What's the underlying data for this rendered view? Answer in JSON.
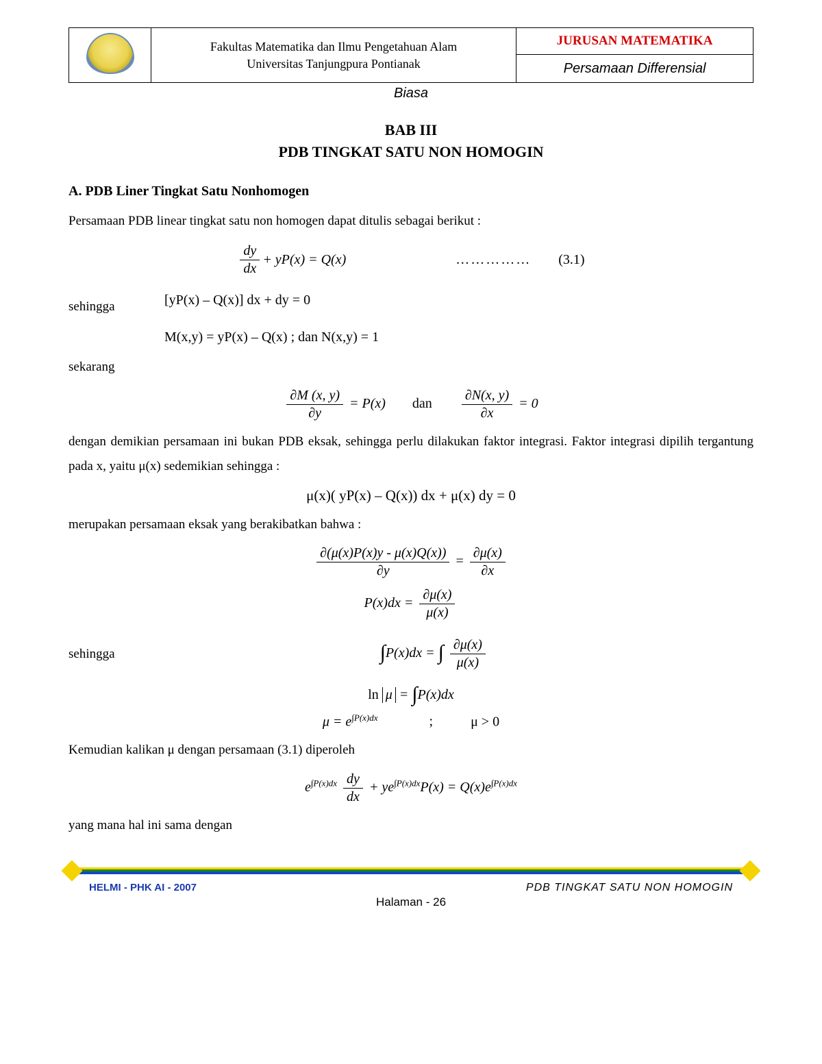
{
  "colors": {
    "text": "#000000",
    "accent_red": "#d40000",
    "footer_blue": "#1a3ab0",
    "bar_yellow": "#f4d300",
    "bar_green": "#1a8a1a",
    "bar_blue": "#1548c0",
    "logo_outer": "#6d8db8",
    "logo_inner": "#e9d24e"
  },
  "header": {
    "faculty_line1": "Fakultas Matematika dan Ilmu Pengetahuan Alam",
    "faculty_line2": "Universitas Tanjungpura Pontianak",
    "dept": "JURUSAN MATEMATIKA",
    "course_line1": "Persamaan Differensial",
    "course_line2": "Biasa"
  },
  "chapter": {
    "line1": "BAB III",
    "line2": "PDB  TINGKAT SATU  NON HOMOGIN"
  },
  "section": {
    "heading": "A.  PDB Liner Tingkat Satu Nonhomogen",
    "intro": "Persamaan PDB linear tingkat satu non homogen dapat ditulis sebagai berikut :"
  },
  "eq": {
    "e31_lhs1_num": "dy",
    "e31_lhs1_den": "dx",
    "e31_mid": " + yP(x) = Q(x)",
    "e31_dots": "……………",
    "e31_num": "(3.1)",
    "line2": "[yP(x) – Q(x)] dx + dy = 0",
    "sehingga": "sehingga",
    "line3": "M(x,y) = yP(x) – Q(x) ; dan N(x,y) = 1",
    "sekarang": "sekarang",
    "partM_num": "∂M (x, y)",
    "partM_den": "∂y",
    "eqP": " = P(x)",
    "dan": "dan",
    "partN_num": "∂N(x, y)",
    "partN_den": "∂x",
    "eq0": " = 0",
    "para_nonexact": "dengan demikian persamaan ini bukan PDB eksak, sehingga perlu dilakukan faktor integrasi. Faktor integrasi dipilih tergantung pada x, yaitu μ(x) sedemikian sehingga :",
    "mu_line": "μ(x)( yP(x) – Q(x)) dx + μ(x) dy = 0",
    "para_exact": "merupakan persamaan eksak yang berakibatkan bahwa :",
    "big_num": "∂(μ(x)P(x)y -  μ(x)Q(x))",
    "big_den": "∂y",
    "big_eq": " = ",
    "big_rhs_num": "∂μ(x)",
    "big_rhs_den": "∂x",
    "pdx_lhs": "P(x)dx = ",
    "pdx_num": "∂μ(x)",
    "pdx_den": "μ(x)",
    "int_lhs": "∫P(x)dx = ",
    "int_rhs_pre": "∫",
    "int_rhs_num": "∂μ(x)",
    "int_rhs_den": "μ(x)",
    "ln_lhs": "ln",
    "ln_abs": "μ",
    "ln_rhs": " = ∫P(x)dx",
    "mu_eq": "μ = e",
    "mu_exp": "∫P(x)dx",
    "mu_semi": ";",
    "mu_cond": "μ > 0",
    "kalikan": "Kemudian kalikan μ dengan persamaan (3.1) diperoleh",
    "final_t1_pre": "e",
    "final_t1_exp": "∫P(x)dx",
    "final_frac_num": "dy",
    "final_frac_den": "dx",
    "final_plus": " + ye",
    "final_t2_exp": "∫P(x)dx",
    "final_px": "P(x) = Q(x)e",
    "final_t3_exp": "∫P(x)dx",
    "yang_mana": "yang mana hal ini sama dengan"
  },
  "footer": {
    "left": "HELMI - PHK AI - 2007",
    "right": "PDB  TINGKAT  SATU  NON HOMOGIN",
    "page_label": "Halaman -  ",
    "page_num": "26"
  }
}
